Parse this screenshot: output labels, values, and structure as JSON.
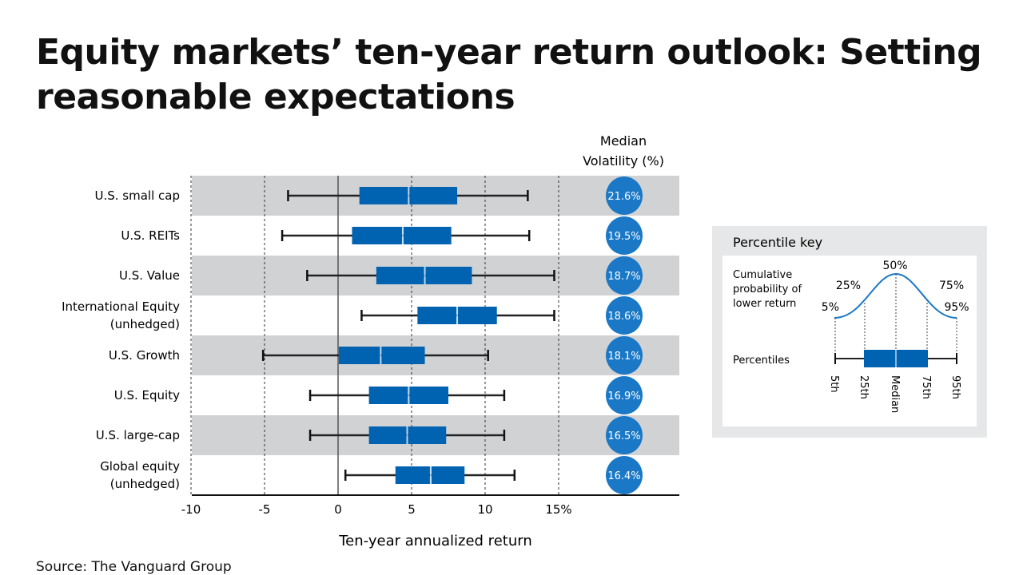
{
  "title": "Equity markets’ ten-year return outlook: Setting reasonable expectations",
  "source": "Source: The Vanguard Group",
  "colors": {
    "box": "#0063b1",
    "circle": "#1a78c6",
    "band": "#d1d2d4",
    "key_bg": "#e6e7e8"
  },
  "chart_data": {
    "type": "box",
    "xlabel": "Ten-year annualized return",
    "xlim": [
      -10,
      18.5
    ],
    "xticks": [
      -10,
      -5,
      0,
      5,
      10,
      15
    ],
    "xtick_labels": [
      "-10",
      "-5",
      "0",
      "5",
      "10",
      "15%"
    ],
    "volatility_header": [
      "Median",
      "Volatility (%)"
    ],
    "series": [
      {
        "category": [
          "U.S. small cap"
        ],
        "p5": -3.4,
        "p25": 1.45,
        "median": 4.8,
        "p75": 8.1,
        "p95": 12.9,
        "volatility": "21.6%"
      },
      {
        "category": [
          "U.S. REITs"
        ],
        "p5": -3.8,
        "p25": 0.95,
        "median": 4.4,
        "p75": 7.7,
        "p95": 13.0,
        "volatility": "19.5%"
      },
      {
        "category": [
          "U.S. Value"
        ],
        "p5": -2.1,
        "p25": 2.6,
        "median": 5.9,
        "p75": 9.1,
        "p95": 14.7,
        "volatility": "18.7%"
      },
      {
        "category": [
          "International Equity",
          "(unhedged)"
        ],
        "p5": 1.6,
        "p25": 5.4,
        "median": 8.1,
        "p75": 10.8,
        "p95": 14.7,
        "volatility": "18.6%"
      },
      {
        "category": [
          "U.S. Growth"
        ],
        "p5": -5.1,
        "p25": 0.05,
        "median": 2.9,
        "p75": 5.9,
        "p95": 10.2,
        "volatility": "18.1%"
      },
      {
        "category": [
          "U.S. Equity"
        ],
        "p5": -1.9,
        "p25": 2.1,
        "median": 4.8,
        "p75": 7.5,
        "p95": 11.3,
        "volatility": "16.9%"
      },
      {
        "category": [
          "U.S. large-cap"
        ],
        "p5": -1.9,
        "p25": 2.1,
        "median": 4.7,
        "p75": 7.35,
        "p95": 11.3,
        "volatility": "16.5%"
      },
      {
        "category": [
          "Global equity",
          "(unhedged)"
        ],
        "p5": 0.5,
        "p25": 3.9,
        "median": 6.3,
        "p75": 8.6,
        "p95": 12.0,
        "volatility": "16.4%"
      }
    ]
  },
  "key": {
    "title": "Percentile key",
    "cumulative_label": [
      "Cumulative",
      "probability of",
      "lower return"
    ],
    "curve_labels": [
      "5%",
      "25%",
      "50%",
      "75%",
      "95%"
    ],
    "percentiles_label": "Percentiles",
    "axis_labels": [
      "5th",
      "25th",
      "Median",
      "75th",
      "95th"
    ]
  }
}
